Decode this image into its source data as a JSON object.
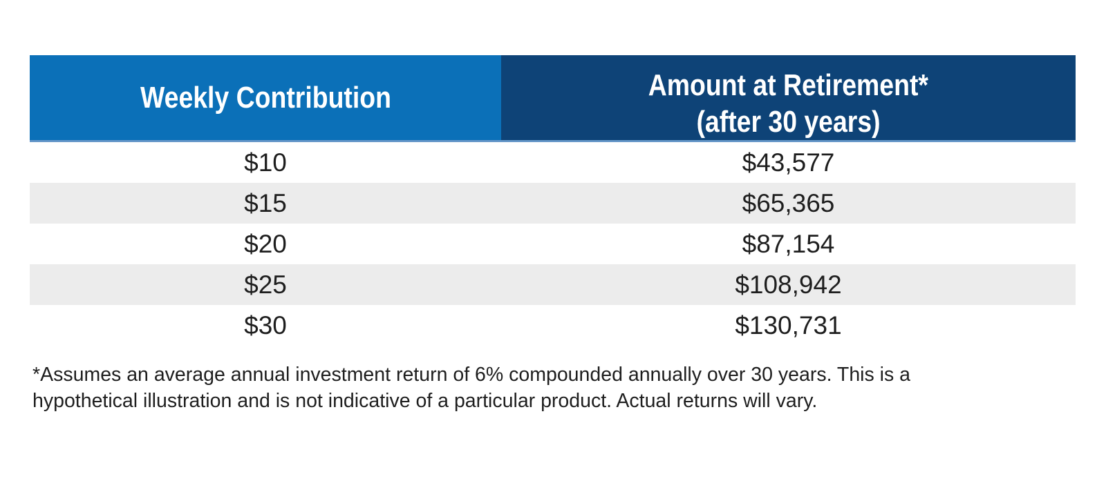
{
  "colors": {
    "background": "#ffffff",
    "header_left_bg": "#0b70b8",
    "header_right_bg": "#0e4377",
    "header_underline": "#6697c8",
    "header_text": "#ffffff",
    "row_alt_bg": "#ececec",
    "text": "#1e1e1e"
  },
  "table": {
    "header": {
      "left": "Weekly Contribution",
      "right_line1": "Amount at Retirement*",
      "right_line2": "(after 30 years)"
    },
    "rows": [
      {
        "contribution": "$10",
        "amount": "$43,577"
      },
      {
        "contribution": "$15",
        "amount": "$65,365"
      },
      {
        "contribution": "$20",
        "amount": "$87,154"
      },
      {
        "contribution": "$25",
        "amount": "$108,942"
      },
      {
        "contribution": "$30",
        "amount": "$130,731"
      }
    ]
  },
  "footnote": {
    "line1": "*Assumes an average annual investment return of 6% compounded annually over 30 years. This is a",
    "line2": "hypothetical illustration and is not indicative of a particular product. Actual returns will vary."
  },
  "chart_data": {
    "type": "table",
    "columns": [
      "Weekly Contribution",
      "Amount at Retirement* (after 30 years)"
    ],
    "rows": [
      [
        "$10",
        "$43,577"
      ],
      [
        "$15",
        "$65,365"
      ],
      [
        "$20",
        "$87,154"
      ],
      [
        "$25",
        "$108,942"
      ],
      [
        "$30",
        "$130,731"
      ]
    ],
    "weekly_contribution_usd": [
      10,
      15,
      20,
      25,
      30
    ],
    "amount_at_retirement_usd": [
      43577,
      65365,
      87154,
      108942,
      130731
    ],
    "footnote": "*Assumes an average annual investment return of 6% compounded annually over 30 years. This is a hypothetical illustration and is not indicative of a particular product. Actual returns will vary."
  }
}
